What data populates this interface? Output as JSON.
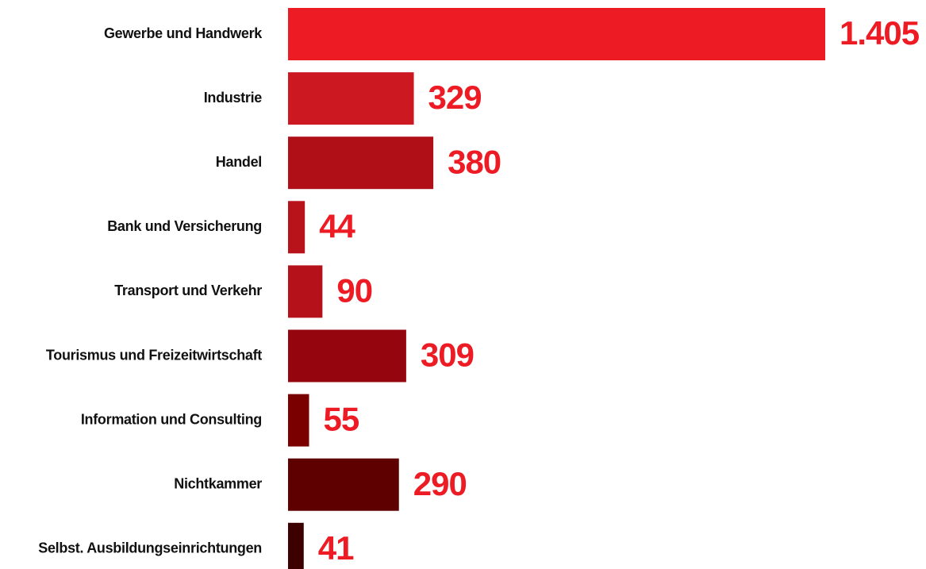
{
  "chart_data": {
    "type": "barh",
    "categories": [
      "Gewerbe und Handwerk",
      "Industrie",
      "Handel",
      "Bank und Versicherung",
      "Transport und Verkehr",
      "Tourismus und Freizeitwirtschaft",
      "Information und Consulting",
      "Nichtkammer",
      "Selbst. Ausbildungseinrichtungen"
    ],
    "values": [
      1405,
      329,
      380,
      44,
      90,
      309,
      55,
      290,
      41
    ],
    "value_labels": [
      "1.405",
      "329",
      "380",
      "44",
      "90",
      "309",
      "55",
      "290",
      "41"
    ],
    "colors": [
      "#ed1c24",
      "#cc1820",
      "#b00f18",
      "#b8121a",
      "#b5111a",
      "#95050e",
      "#7a0000",
      "#5e0000",
      "#3c0000"
    ],
    "label_color": "#ed1c24",
    "xlim": [
      0,
      1405
    ]
  }
}
